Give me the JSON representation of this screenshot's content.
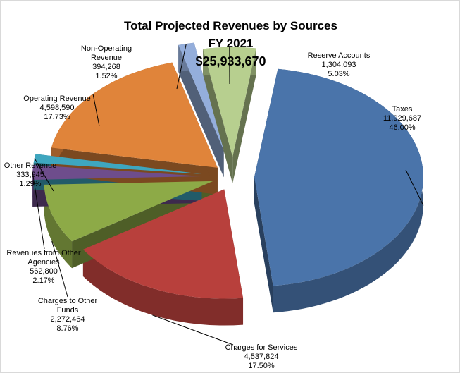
{
  "chart_data": {
    "type": "pie",
    "title": "Total Projected Revenues by Sources",
    "subtitle": "FY 2021",
    "total_label": "$25,933,670",
    "categories": [
      "Taxes",
      "Charges for Services",
      "Charges to Other Funds",
      "Revenues from Other Agencies",
      "Other Revenue",
      "Operating Revenue",
      "Non-Operating Revenue",
      "Reserve Accounts"
    ],
    "values": [
      11929687,
      4537824,
      2272464,
      562800,
      333945,
      4598590,
      394268,
      1304093
    ],
    "value_labels": [
      "11,929,687",
      "4,537,824",
      "2,272,464",
      "562,800",
      "333,945",
      "4,598,590",
      "394,268",
      "1,304,093"
    ],
    "percent_labels": [
      "46.00%",
      "17.50%",
      "8.76%",
      "2.17%",
      "1.29%",
      "17.73%",
      "1.52%",
      "5.03%"
    ],
    "colors": [
      "#4a74aa",
      "#b8403c",
      "#8daa47",
      "#6e4d8c",
      "#3ea6bf",
      "#e0843a",
      "#94aedb",
      "#b7cf8f"
    ]
  }
}
